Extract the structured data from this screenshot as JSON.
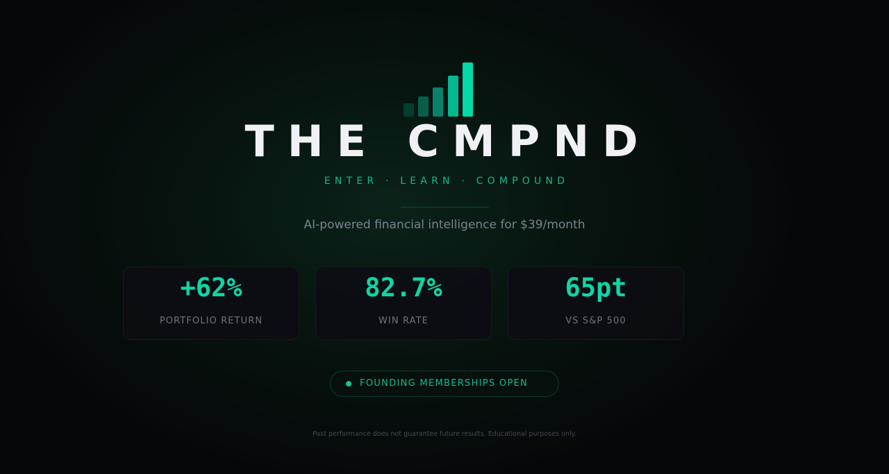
{
  "brand": {
    "title": "THE CMPND",
    "tagline": "ENTER · LEARN · COMPOUND",
    "subtitle": "AI-powered financial intelligence for $39/month",
    "logo_icon": "bar-chart-growth-icon",
    "logo_colors": [
      "#063d30",
      "#075f4b",
      "#08836a",
      "#05b891",
      "#00d9a8"
    ]
  },
  "stats": [
    {
      "value": "+62%",
      "label": "PORTFOLIO RETURN"
    },
    {
      "value": "82.7%",
      "label": "WIN RATE"
    },
    {
      "value": "65pt",
      "label": "VS S&P 500"
    }
  ],
  "cta": {
    "label": "FOUNDING MEMBERSHIPS OPEN",
    "icon": "status-dot-icon"
  },
  "disclaimer": "Past performance does not guarantee future results. Educational purposes only.",
  "colors": {
    "accent": "#0fd6a6",
    "background": "#050709",
    "text": "#f1f1f5"
  }
}
